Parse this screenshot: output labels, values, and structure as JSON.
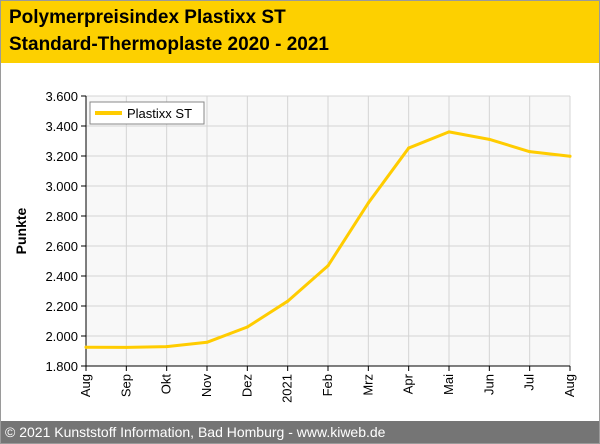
{
  "header": {
    "title_line1": "Polymerpreisindex Plastixx ST",
    "title_line2": "Standard-Thermoplaste 2020 - 2021"
  },
  "footer": {
    "text": "© 2021 Kunststoff Information, Bad Homburg - www.kiweb.de"
  },
  "colors": {
    "brand_yellow": "#fdd000",
    "series_line": "#ffcc00",
    "footer_bg": "#757575",
    "plot_bg": "#f8f8f8",
    "grid": "#d4d4d4"
  },
  "chart_data": {
    "type": "line",
    "title": "Polymerpreisindex Plastixx ST Standard-Thermoplaste 2020 - 2021",
    "xlabel": "",
    "ylabel": "Punkte",
    "categories": [
      "Aug",
      "Sep",
      "Okt",
      "Nov",
      "Dez",
      "2021",
      "Feb",
      "Mrz",
      "Apr",
      "Mai",
      "Jun",
      "Jul",
      "Aug"
    ],
    "ylim": [
      1800,
      3600
    ],
    "yticks": [
      1800,
      2000,
      2200,
      2400,
      2600,
      2800,
      3000,
      3200,
      3400,
      3600
    ],
    "ytick_labels": [
      "1.800",
      "2.000",
      "2.200",
      "2.400",
      "2.600",
      "2.800",
      "3.000",
      "3.200",
      "3.400",
      "3.600"
    ],
    "grid": true,
    "legend_position": "top-left",
    "series": [
      {
        "name": "Plastixx ST",
        "values": [
          1925,
          1924,
          1929,
          1958,
          2060,
          2232,
          2468,
          2887,
          3253,
          3361,
          3311,
          3229,
          3198
        ]
      }
    ]
  }
}
